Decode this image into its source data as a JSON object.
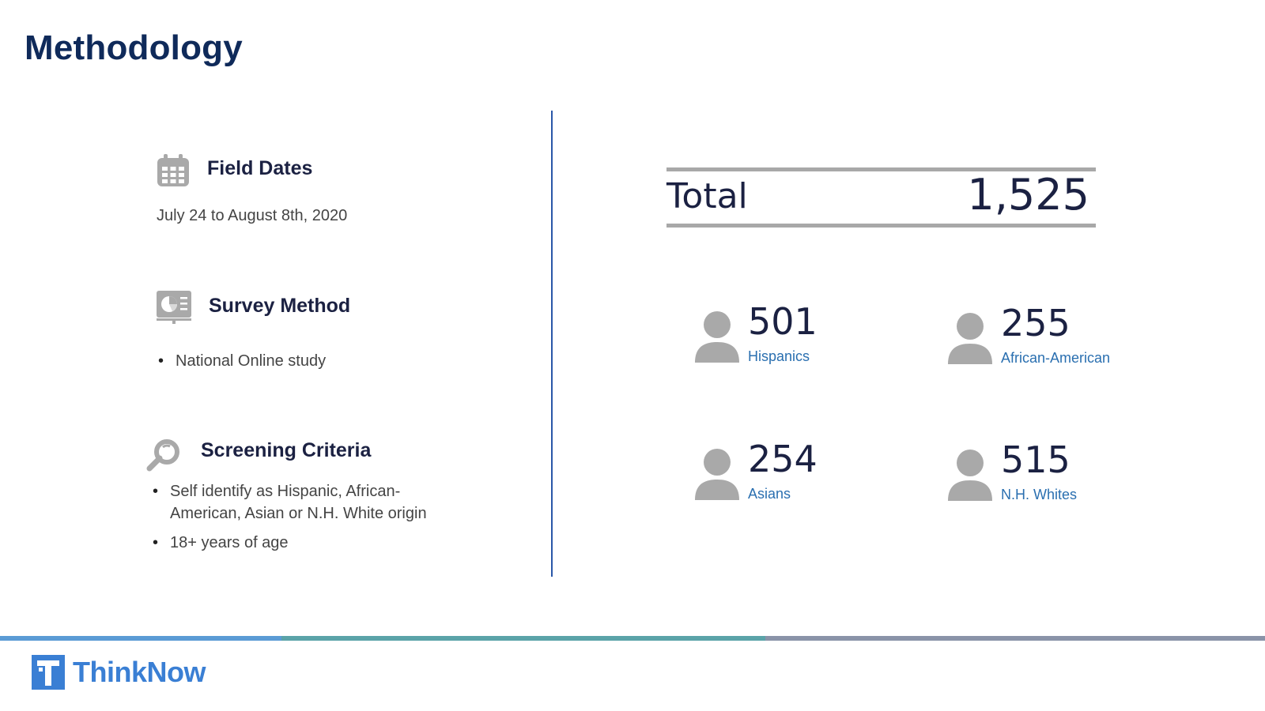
{
  "page": {
    "title": "Methodology"
  },
  "sections": {
    "field_dates": {
      "icon": "calendar-icon",
      "title": "Field Dates",
      "text": "July 24 to August 8th, 2020"
    },
    "survey_method": {
      "icon": "presentation-chart-icon",
      "title": "Survey Method",
      "bullets": [
        "National Online study"
      ]
    },
    "screening": {
      "icon": "magnifier-icon",
      "title": "Screening Criteria",
      "bullets": [
        "Self identify as Hispanic, African-American, Asian or N.H. White origin",
        "18+ years of age"
      ]
    }
  },
  "total": {
    "label": "Total",
    "value": "1,525"
  },
  "stats": [
    {
      "value": "501",
      "label": "Hispanics",
      "icon": "person-icon"
    },
    {
      "value": "255",
      "label": "African-American",
      "icon": "person-icon"
    },
    {
      "value": "254",
      "label": "Asians",
      "icon": "person-icon"
    },
    {
      "value": "515",
      "label": "N.H. Whites",
      "icon": "person-icon"
    }
  ],
  "footer": {
    "brand": "ThinkNow",
    "bar_colors": [
      "#5b9bd5",
      "#5ba3a8",
      "#8a93a8"
    ],
    "accent": "#3a7fd4"
  }
}
